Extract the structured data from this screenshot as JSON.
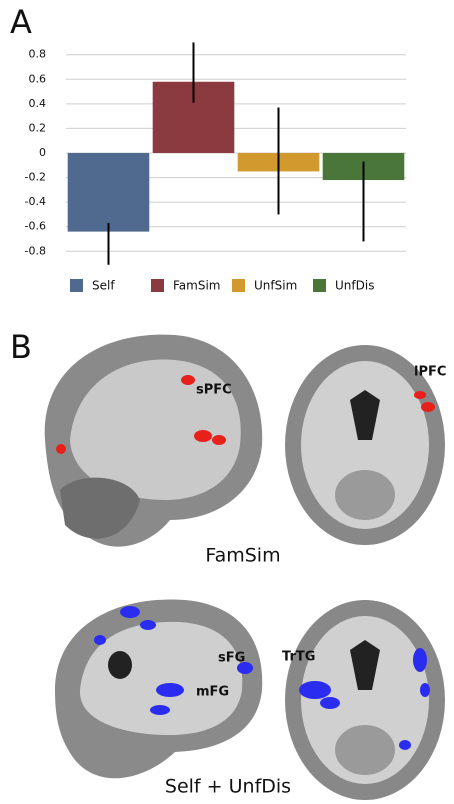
{
  "chart_data": {
    "type": "bar",
    "categories": [
      "Self",
      "FamSim",
      "UnfSim",
      "UnfDis"
    ],
    "series": [
      {
        "name": "Self",
        "color": "#50698f"
      },
      {
        "name": "FamSim",
        "color": "#8b3b40"
      },
      {
        "name": "UnfSim",
        "color": "#d29a2e"
      },
      {
        "name": "UnfDis",
        "color": "#4a763a"
      }
    ],
    "values": [
      -0.64,
      0.58,
      -0.15,
      -0.22
    ],
    "error_low": [
      -0.91,
      0.41,
      -0.5,
      -0.72
    ],
    "error_high": [
      -0.57,
      0.9,
      0.37,
      -0.07
    ],
    "ylim": [
      -0.92,
      0.92
    ],
    "yticks": [
      0.8,
      0.6,
      0.4,
      0.2,
      0,
      -0.2,
      -0.4,
      -0.6,
      -0.8
    ],
    "grid": true
  },
  "panels": {
    "a_label": "A",
    "b_label": "B",
    "top_caption": "FamSim",
    "bottom_caption": "Self + UnfDis",
    "regions": [
      "sPFC",
      "lPFC",
      "sFG",
      "mFG",
      "TrTG"
    ]
  }
}
